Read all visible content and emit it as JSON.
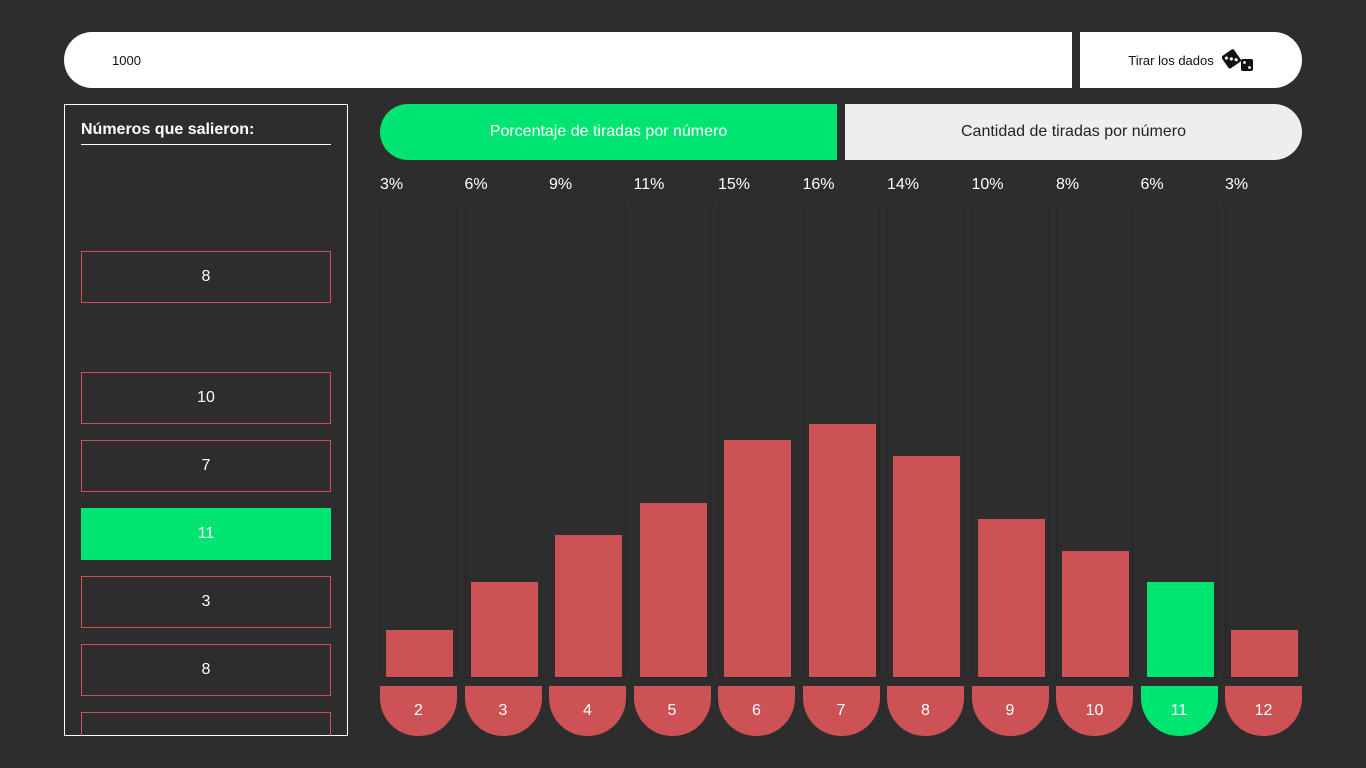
{
  "roll_input": {
    "value": "1000",
    "placeholder": ""
  },
  "roll_button": {
    "label": "Tirar los dados"
  },
  "results_panel": {
    "title": "Números que salieron:",
    "items": [
      {
        "value": "8",
        "highlighted": false
      },
      {
        "value": "10",
        "highlighted": false
      },
      {
        "value": "7",
        "highlighted": false
      },
      {
        "value": "11",
        "highlighted": true
      },
      {
        "value": "3",
        "highlighted": false
      },
      {
        "value": "8",
        "highlighted": false
      },
      {
        "value": "",
        "highlighted": false
      }
    ]
  },
  "tabs": [
    {
      "label": "Porcentaje de tiradas por número",
      "active": true
    },
    {
      "label": "Cantidad de tiradas por número",
      "active": false
    }
  ],
  "colors": {
    "accent": "#00e472",
    "bar": "#cc5256",
    "background": "#2d2d2d"
  },
  "chart_data": {
    "type": "bar",
    "categories": [
      "2",
      "3",
      "4",
      "5",
      "6",
      "7",
      "8",
      "9",
      "10",
      "11",
      "12"
    ],
    "percent_labels": [
      "3%",
      "6%",
      "9%",
      "11%",
      "15%",
      "16%",
      "14%",
      "10%",
      "8%",
      "6%",
      "3%"
    ],
    "values": [
      3,
      6,
      9,
      11,
      15,
      16,
      14,
      10,
      8,
      6,
      3
    ],
    "highlight_category": "11",
    "title": "Porcentaje de tiradas por número",
    "ylim": [
      0,
      30
    ]
  }
}
